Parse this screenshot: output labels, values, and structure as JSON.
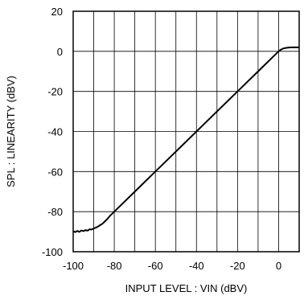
{
  "chart_data": {
    "type": "line",
    "xlabel": "INPUT LEVEL : VIN (dBV)",
    "ylabel": "SPL : LINEARITY (dBV)",
    "xlim": [
      -100,
      10
    ],
    "ylim": [
      -100,
      20
    ],
    "xticks": [
      -100,
      -80,
      -60,
      -40,
      -20,
      0
    ],
    "yticks": [
      20,
      0,
      -20,
      -40,
      -60,
      -80,
      -100
    ],
    "grid": true,
    "line_color": "#000000",
    "series": [
      {
        "x": [
          -100,
          -99,
          -98,
          -97,
          -96,
          -95,
          -94,
          -93,
          -92,
          -91,
          -90,
          -89,
          -88,
          -87,
          -86,
          -85,
          -84,
          -83,
          -82,
          -81,
          -80,
          -70,
          -60,
          -50,
          -40,
          -30,
          -20,
          -10,
          -2,
          0,
          1,
          2,
          3,
          4,
          5,
          6,
          7,
          8,
          9,
          10
        ],
        "y": [
          -89.8,
          -90.2,
          -89.6,
          -90.1,
          -89.4,
          -89.7,
          -89.2,
          -89.5,
          -88.8,
          -88.9,
          -88.4,
          -88.0,
          -87.5,
          -86.8,
          -86.2,
          -85.3,
          -84.3,
          -83.2,
          -82.0,
          -81.0,
          -80,
          -70,
          -60,
          -50,
          -40,
          -30,
          -20,
          -10,
          -2,
          0,
          0.8,
          1.3,
          1.6,
          1.8,
          1.9,
          2.0,
          2.0,
          2.0,
          2.0,
          2.0
        ]
      }
    ]
  }
}
